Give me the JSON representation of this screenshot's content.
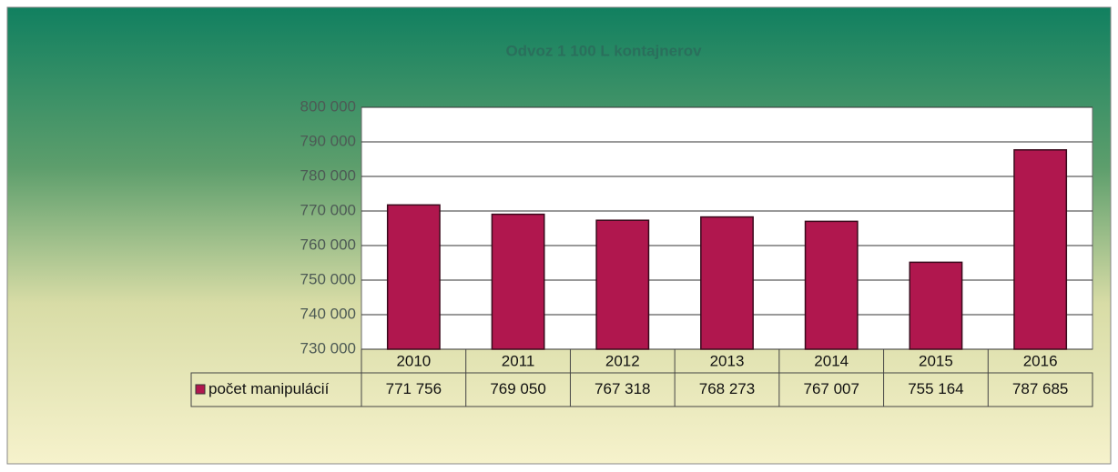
{
  "chart_data": {
    "type": "bar",
    "title": "Odvoz 1 100 L kontajnerov",
    "categories": [
      "2010",
      "2011",
      "2012",
      "2013",
      "2014",
      "2015",
      "2016"
    ],
    "series": [
      {
        "name": "počet manipulácií",
        "color": "#b0174e",
        "values": [
          771756,
          769050,
          767318,
          768273,
          767007,
          755164,
          787685
        ],
        "value_labels": [
          "771 756",
          "769 050",
          "767 318",
          "768 273",
          "767 007",
          "755 164",
          "787 685"
        ]
      }
    ],
    "ylim": [
      730000,
      800000
    ],
    "yticks": [
      {
        "value": 730000,
        "label": "730 000"
      },
      {
        "value": 740000,
        "label": "740 000"
      },
      {
        "value": 750000,
        "label": "750 000"
      },
      {
        "value": 760000,
        "label": "760 000"
      },
      {
        "value": 770000,
        "label": "770 000"
      },
      {
        "value": 780000,
        "label": "780 000"
      },
      {
        "value": 790000,
        "label": "790 000"
      },
      {
        "value": 800000,
        "label": "800 000"
      }
    ],
    "grid": true
  }
}
